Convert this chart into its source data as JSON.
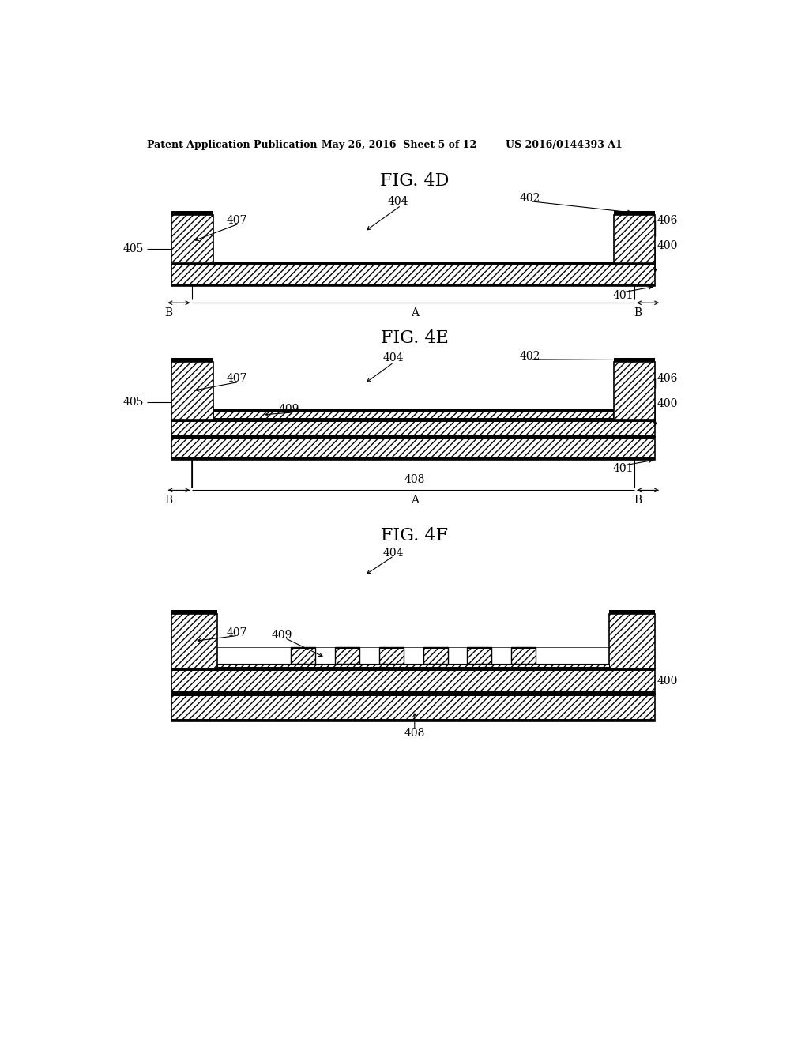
{
  "page_header_left": "Patent Application Publication",
  "page_header_mid": "May 26, 2016  Sheet 5 of 12",
  "page_header_right": "US 2016/0144393 A1",
  "fig4d_title": "FIG. 4D",
  "fig4e_title": "FIG. 4E",
  "fig4f_title": "FIG. 4F",
  "bg_color": "#ffffff"
}
